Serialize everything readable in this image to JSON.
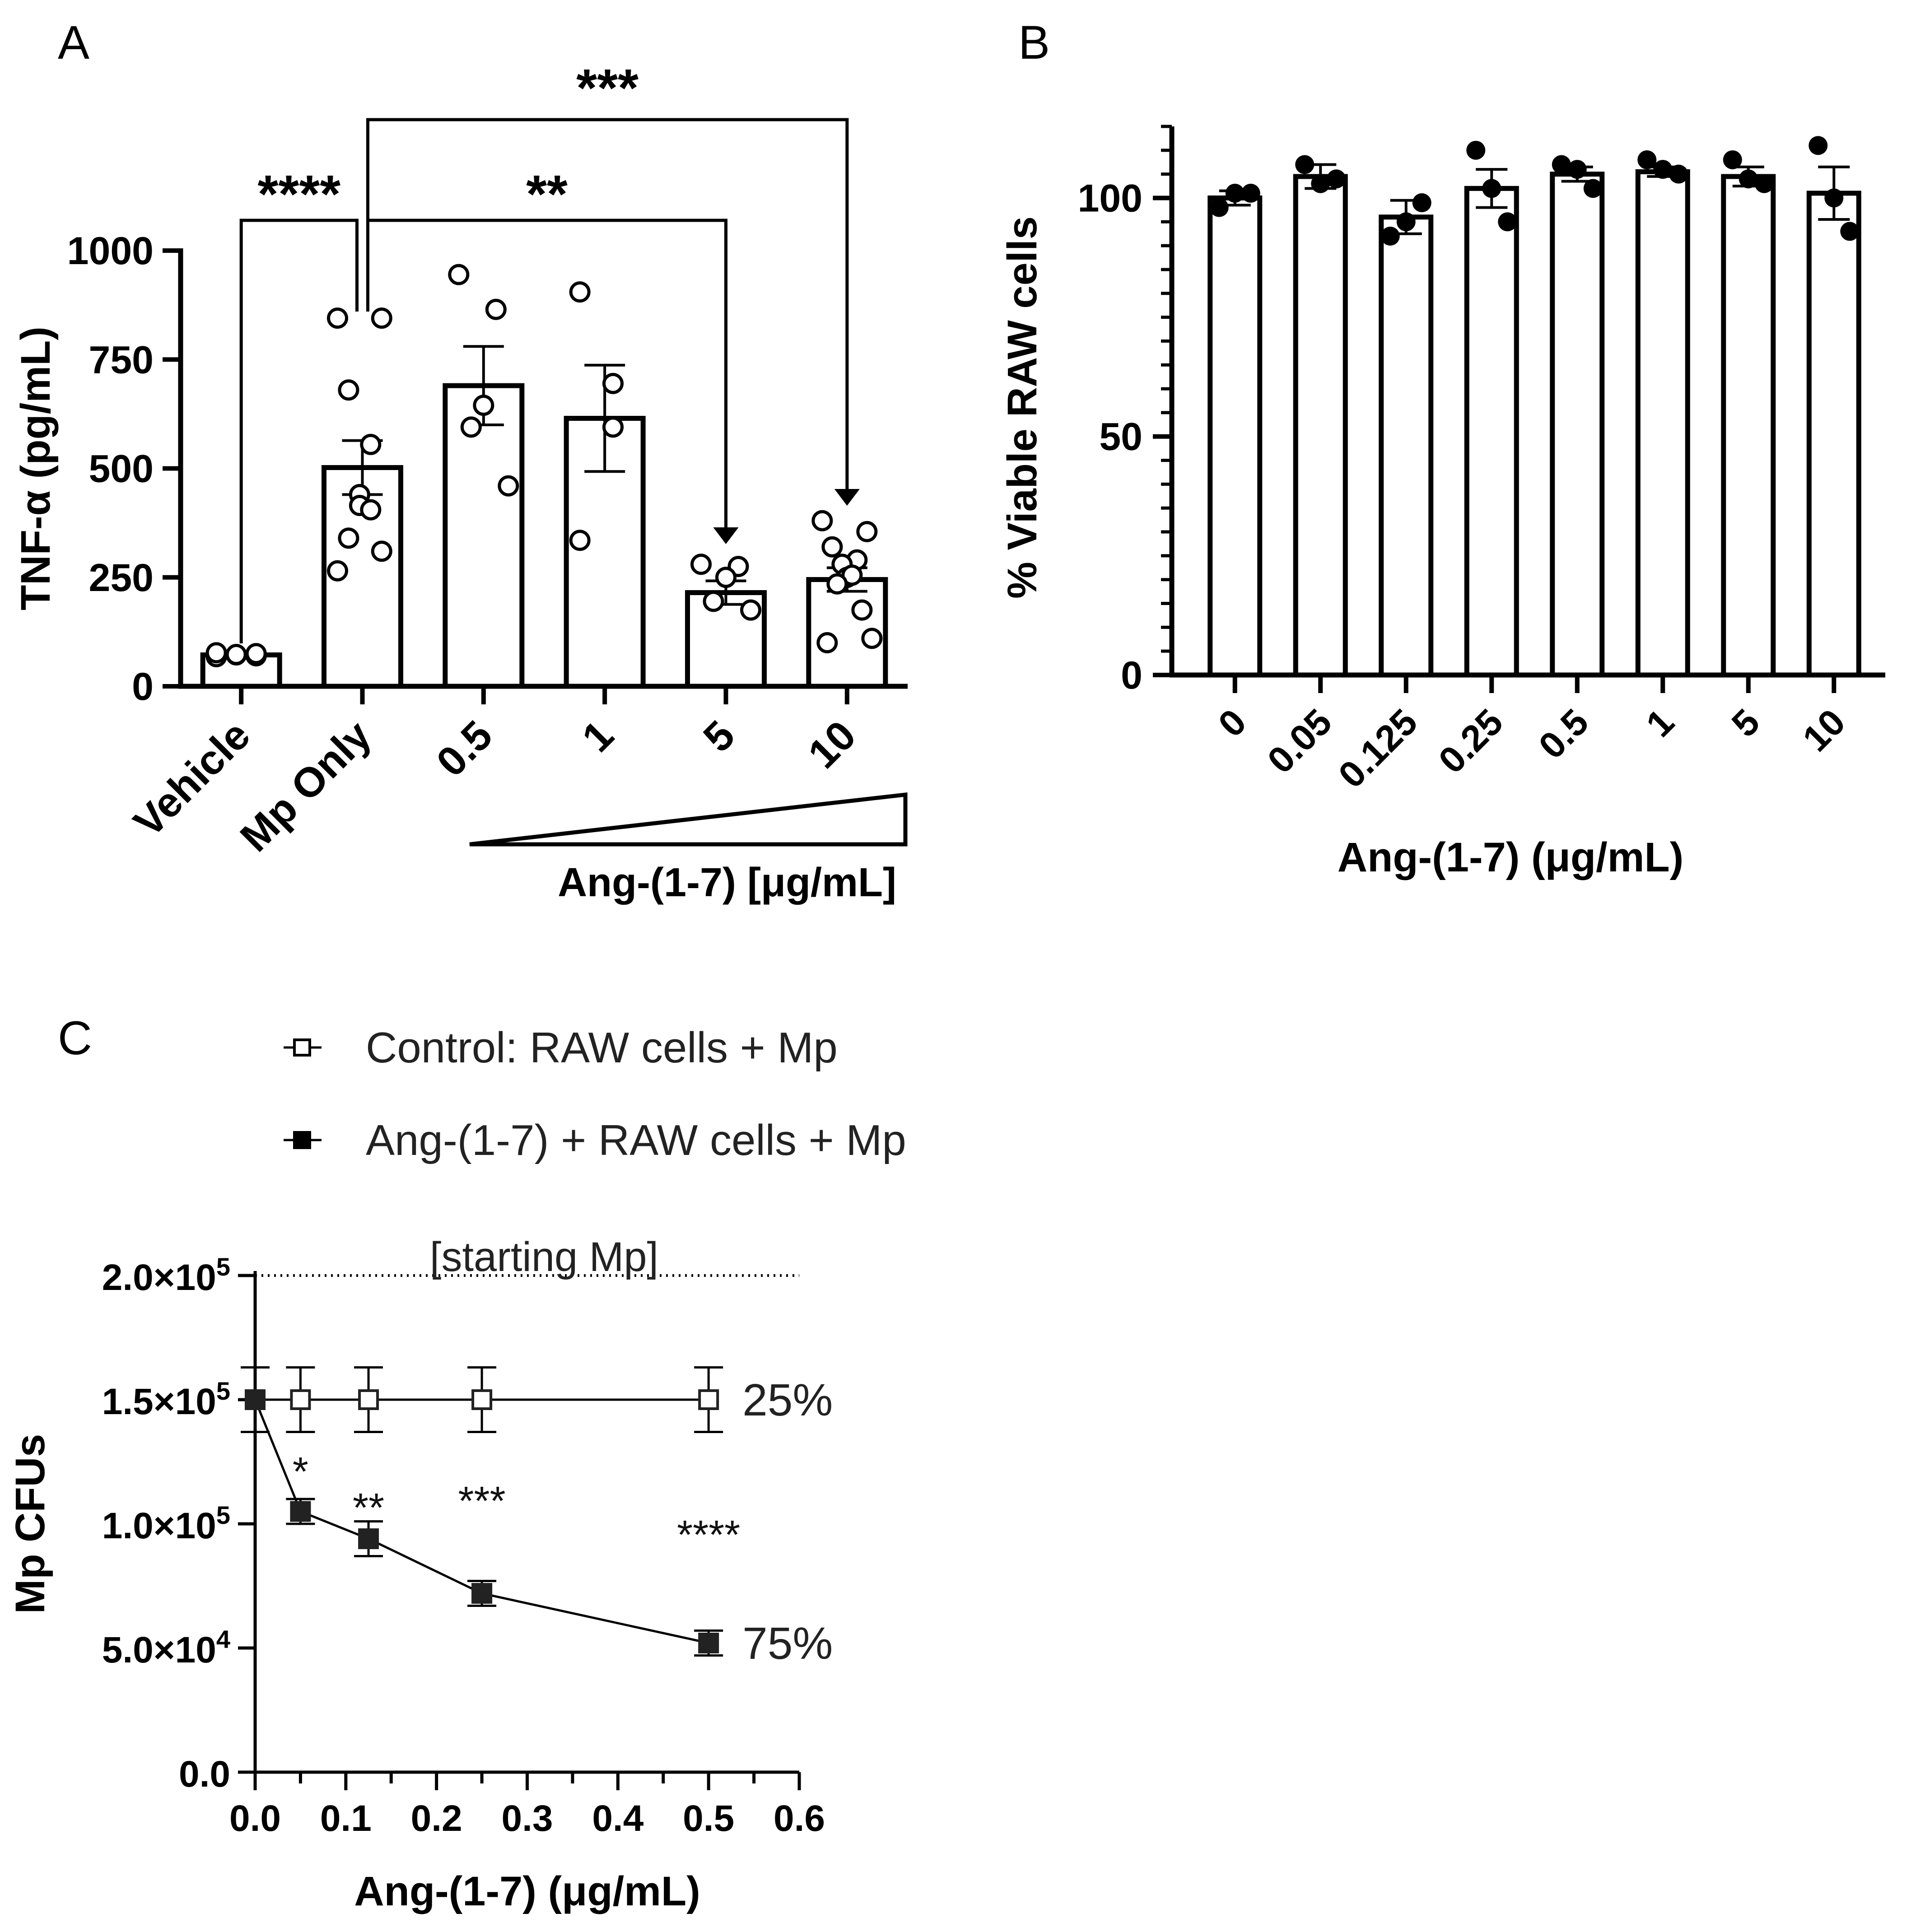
{
  "panels": {
    "A": {
      "label": "A"
    },
    "B": {
      "label": "B"
    },
    "C": {
      "label": "C"
    }
  },
  "chart_data": [
    {
      "panel": "A",
      "type": "bar",
      "ylabel": "TNF-α (pg/mL)",
      "xlabel": "Ang-(1-7) [μg/mL]",
      "ylim": [
        0,
        1000
      ],
      "yticks": [
        0,
        250,
        500,
        750,
        1000
      ],
      "categories": [
        "Vehicle",
        "Mp Only",
        "0.5",
        "1",
        "5",
        "10"
      ],
      "values": [
        72,
        502,
        690,
        615,
        215,
        245
      ],
      "errors": [
        8,
        62,
        90,
        122,
        27,
        27
      ],
      "points": [
        [
          68,
          70,
          72,
          73,
          75,
          77
        ],
        [
          845,
          845,
          680,
          555,
          440,
          415,
          405,
          340,
          310,
          265
        ],
        [
          945,
          865,
          645,
          595,
          460
        ],
        [
          905,
          695,
          595,
          335
        ],
        [
          280,
          275,
          250,
          195,
          175
        ],
        [
          380,
          355,
          320,
          290,
          280,
          250,
          255,
          235,
          175,
          100,
          110
        ]
      ],
      "significance": [
        {
          "from": "Vehicle",
          "to": "Mp Only",
          "label": "****"
        },
        {
          "from": "Mp Only",
          "to": "5",
          "label": "**"
        },
        {
          "from": "Mp Only",
          "to": "10",
          "label": "***"
        }
      ],
      "wedge": true
    },
    {
      "panel": "B",
      "type": "bar",
      "ylabel": "% Viable RAW cells",
      "xlabel": "Ang-(1-7) (μg/mL)",
      "ylim": [
        0,
        115
      ],
      "yticks": [
        0,
        50,
        100
      ],
      "categories": [
        "0",
        "0.05",
        "0.125",
        "0.25",
        "0.5",
        "1",
        "5",
        "10"
      ],
      "values": [
        100,
        104.5,
        96,
        102,
        105,
        105.5,
        104.5,
        101
      ],
      "errors": [
        1.5,
        2.5,
        3.5,
        4,
        1.5,
        1,
        2,
        5.5
      ],
      "points": [
        [
          98,
          101,
          101
        ],
        [
          107,
          103,
          104
        ],
        [
          92,
          95,
          99
        ],
        [
          110,
          102,
          95
        ],
        [
          107,
          106,
          102
        ],
        [
          108,
          106,
          105
        ],
        [
          108,
          104,
          103
        ],
        [
          111,
          100,
          93
        ]
      ]
    },
    {
      "panel": "C",
      "type": "line",
      "ylabel": "Mp CFUs",
      "xlabel": "Ang-(1-7) (μg/mL)",
      "xlim": [
        0,
        0.6
      ],
      "ylim": [
        0,
        200000
      ],
      "xticks": [
        "0.0",
        "0.1",
        "0.2",
        "0.3",
        "0.4",
        "0.5",
        "0.6"
      ],
      "yticks": [
        {
          "value": 0,
          "mant": "0.0",
          "exp": ""
        },
        {
          "value": 50000,
          "mant": "5.0×10",
          "exp": "4"
        },
        {
          "value": 100000,
          "mant": "1.0×10",
          "exp": "5"
        },
        {
          "value": 150000,
          "mant": "1.5×10",
          "exp": "5"
        },
        {
          "value": 200000,
          "mant": "2.0×10",
          "exp": "5"
        }
      ],
      "reference_line": {
        "value": 200000,
        "label": "[starting Mp]"
      },
      "series": [
        {
          "name": "Control: RAW cells + Mp",
          "marker": "open-square",
          "x": [
            0,
            0.05,
            0.125,
            0.25,
            0.5
          ],
          "y": [
            150000,
            150000,
            150000,
            150000,
            150000
          ],
          "err": [
            13000,
            13000,
            13000,
            13000,
            13000
          ],
          "end_label": "25%"
        },
        {
          "name": "Ang-(1-7) + RAW cells + Mp",
          "marker": "filled-square",
          "x": [
            0,
            0.05,
            0.125,
            0.25,
            0.5
          ],
          "y": [
            150000,
            105000,
            94000,
            72000,
            52000
          ],
          "err": [
            13000,
            5000,
            7000,
            5000,
            5000
          ],
          "end_label": "75%"
        }
      ],
      "significance": [
        {
          "x": 0.05,
          "label": "*"
        },
        {
          "x": 0.125,
          "label": "**"
        },
        {
          "x": 0.25,
          "label": "***"
        },
        {
          "x": 0.5,
          "label": "****"
        }
      ]
    }
  ]
}
